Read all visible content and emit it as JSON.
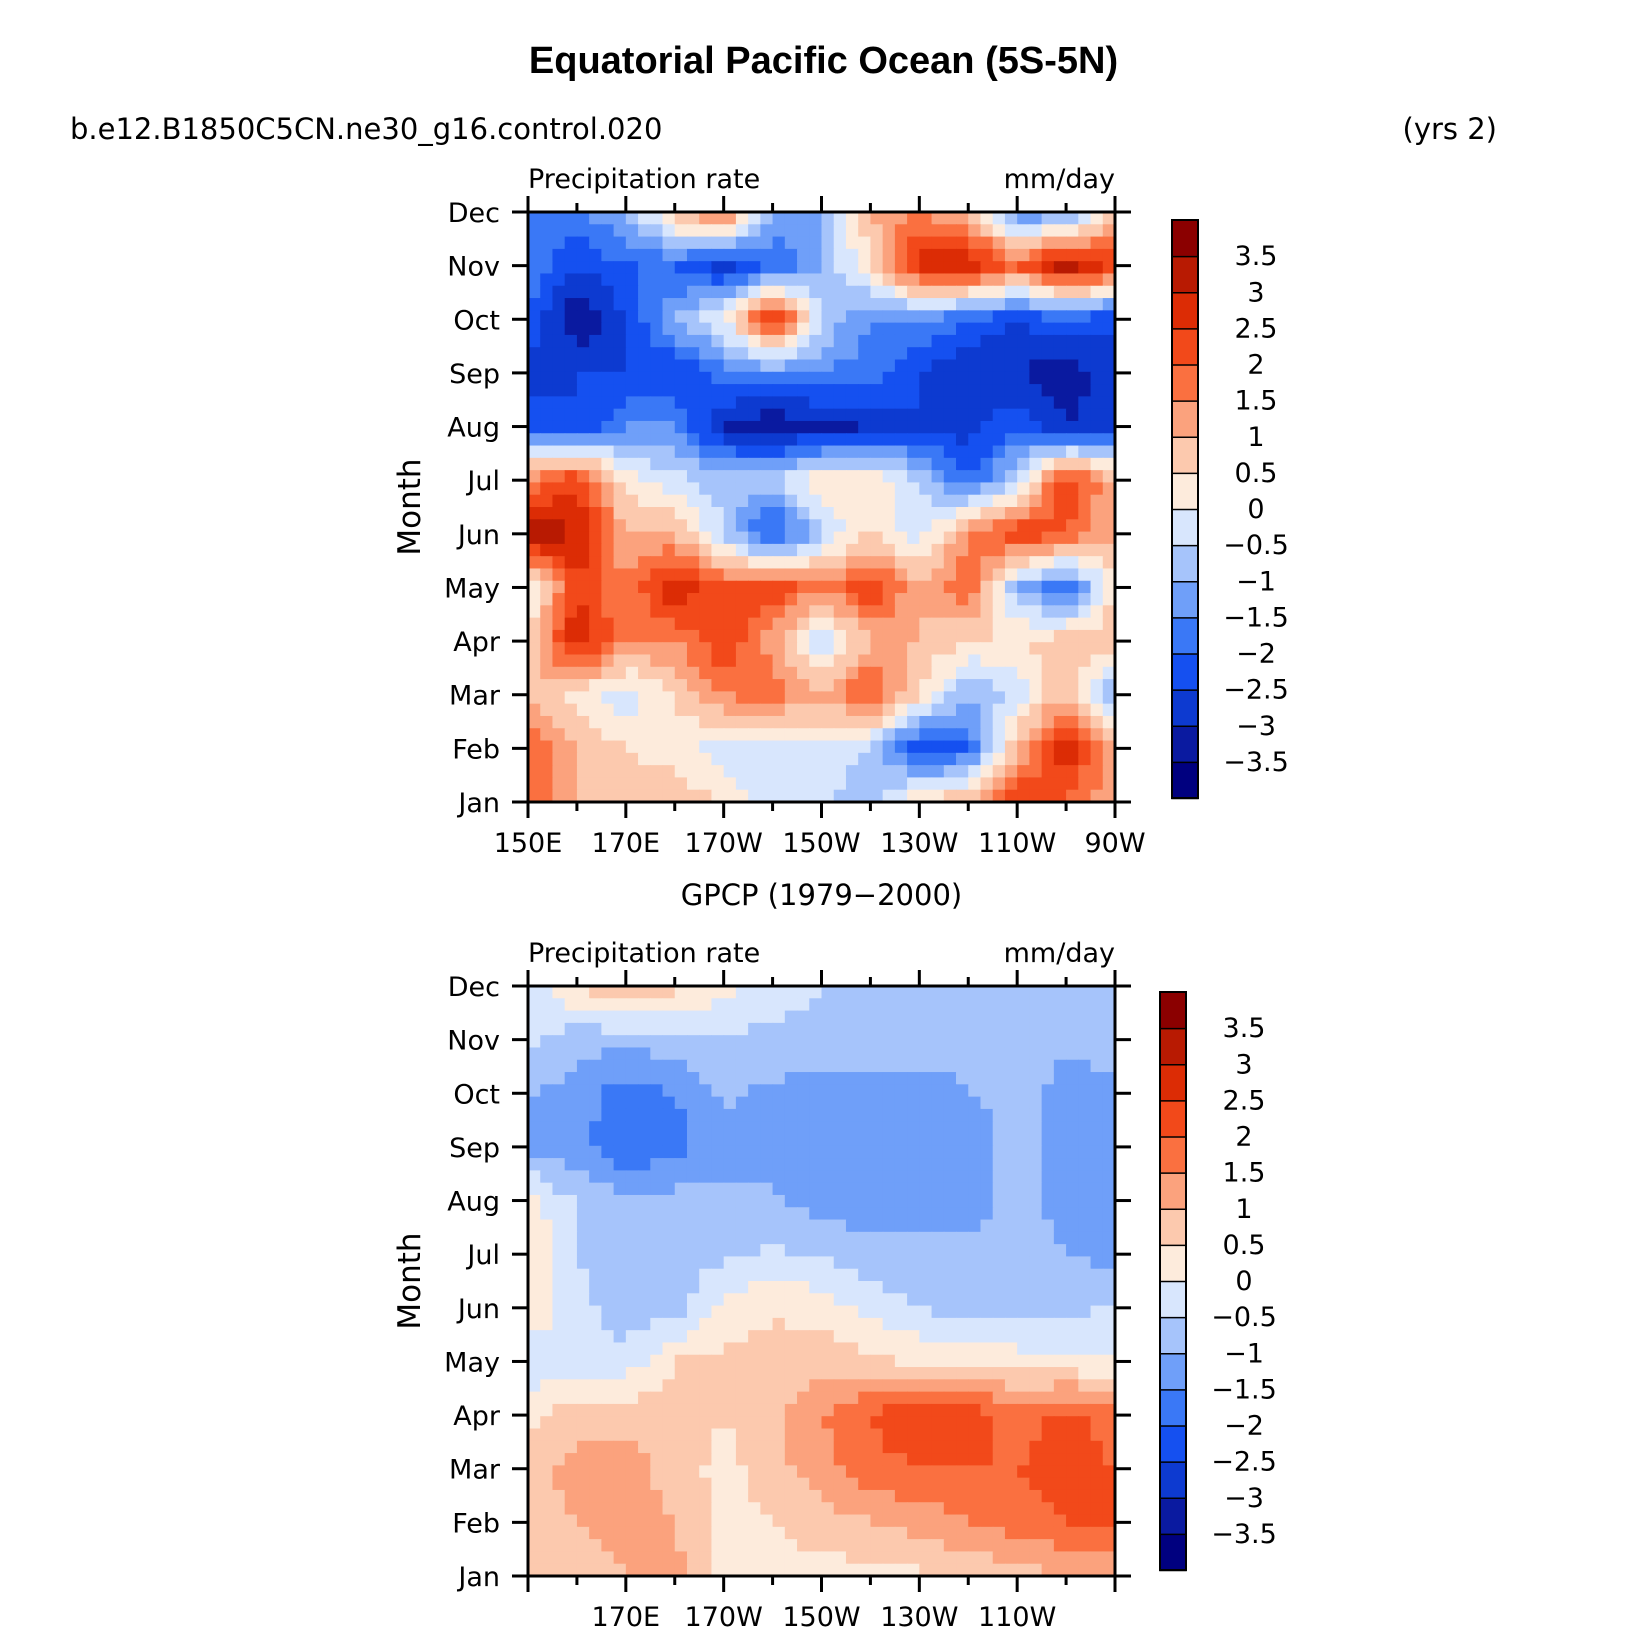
{
  "title": "Equatorial Pacific Ocean (5S-5N)",
  "case_name": "b.e12.B1850C5CN.ne30_g16.control.020",
  "years": "(yrs 2)",
  "colors": {
    "levels": [
      "#00007f",
      "#0a1aa0",
      "#0d3ad0",
      "#1550f0",
      "#3a78f6",
      "#6f9ff9",
      "#a6c4fb",
      "#d8e6fd",
      "#fdebdc",
      "#fcc9ae",
      "#fba27d",
      "#fa7040",
      "#f2491a",
      "#dc2c05",
      "#b81a02",
      "#8b0000"
    ]
  },
  "chart_data": [
    {
      "type": "heatmap",
      "title": "",
      "left_label": "Precipitation rate",
      "right_label": "mm/day",
      "xlabel": "",
      "ylabel": "Month",
      "xlim": [
        150,
        270
      ],
      "x_ticks": [
        150,
        170,
        190,
        210,
        230,
        250,
        270
      ],
      "x_tick_labels": [
        "150E",
        "170E",
        "170W",
        "150W",
        "130W",
        "110W",
        "90W"
      ],
      "y_tick_labels": [
        "Jan",
        "Feb",
        "Mar",
        "Apr",
        "May",
        "Jun",
        "Jul",
        "Aug",
        "Sep",
        "Oct",
        "Nov",
        "Dec"
      ],
      "colorbar_labels": [
        "3.5",
        "3",
        "2.5",
        "2",
        "1.5",
        "1",
        "0.5",
        "0",
        "−0.5",
        "−1",
        "−1.5",
        "−2",
        "−2.5",
        "−3",
        "−3.5"
      ],
      "x": [
        150,
        160,
        170,
        180,
        190,
        200,
        210,
        220,
        230,
        240,
        250,
        260,
        270
      ],
      "values": [
        [
          1.8,
          1.0,
          0.6,
          0.8,
          0.5,
          -0.3,
          -0.5,
          -0.8,
          0.6,
          1.0,
          2.5,
          2.0,
          1.0
        ],
        [
          2.0,
          1.0,
          0.5,
          0.3,
          -0.3,
          -0.6,
          0.0,
          -0.6,
          -2.5,
          -2.0,
          1.0,
          3.0,
          1.0
        ],
        [
          1.0,
          0.3,
          -0.3,
          0.5,
          1.5,
          1.8,
          1.0,
          2.2,
          0.5,
          -1.0,
          -0.3,
          1.0,
          -1.2
        ],
        [
          0.5,
          3.0,
          1.5,
          1.5,
          2.5,
          1.2,
          -0.5,
          1.0,
          1.0,
          0.5,
          0.5,
          0.8,
          1.0
        ],
        [
          -0.3,
          2.5,
          1.5,
          3.0,
          2.0,
          2.5,
          1.5,
          2.5,
          1.0,
          2.0,
          -1.0,
          -2.0,
          0.5
        ],
        [
          3.5,
          3.0,
          1.0,
          1.0,
          -0.5,
          -2.5,
          -0.5,
          0.5,
          -0.3,
          1.5,
          2.5,
          2.0,
          1.0
        ],
        [
          1.5,
          2.5,
          0.3,
          -0.3,
          -0.8,
          -0.5,
          0.5,
          0.5,
          -0.5,
          -2.0,
          -0.5,
          2.5,
          1.0
        ],
        [
          -2.0,
          -2.5,
          -1.5,
          -1.5,
          -3.0,
          -3.5,
          -3.2,
          -3.0,
          -2.5,
          -2.8,
          -2.0,
          -3.0,
          -2.5
        ],
        [
          -2.8,
          -2.5,
          -2.5,
          -2.5,
          -1.8,
          -1.5,
          -1.5,
          -1.8,
          -2.5,
          -3.0,
          -3.0,
          -3.5,
          -2.5
        ],
        [
          -2.0,
          -3.5,
          -2.5,
          -1.0,
          0.0,
          3.0,
          -0.5,
          -1.5,
          -1.5,
          -2.0,
          -2.5,
          -2.0,
          -2.5
        ],
        [
          -1.5,
          -2.5,
          -2.0,
          -2.0,
          -2.8,
          -2.0,
          -1.0,
          0.5,
          2.8,
          3.0,
          2.0,
          3.5,
          2.5
        ],
        [
          -1.5,
          -1.5,
          -1.0,
          1.0,
          2.0,
          -1.0,
          -1.0,
          1.0,
          1.5,
          1.0,
          -1.5,
          -1.5,
          0.5
        ]
      ]
    },
    {
      "type": "heatmap",
      "title": "GPCP (1979−2000)",
      "left_label": "Precipitation rate",
      "right_label": "mm/day",
      "xlabel": "",
      "ylabel": "Month",
      "xlim": [
        150,
        270
      ],
      "x_ticks": [
        170,
        190,
        210,
        230,
        250
      ],
      "x_tick_labels": [
        "170E",
        "170W",
        "150W",
        "130W",
        "110W"
      ],
      "y_tick_labels": [
        "Jan",
        "Feb",
        "Mar",
        "Apr",
        "May",
        "Jun",
        "Jul",
        "Aug",
        "Sep",
        "Oct",
        "Nov",
        "Dec"
      ],
      "colorbar_labels": [
        "3.5",
        "3",
        "2.5",
        "2",
        "1.5",
        "1",
        "0.5",
        "0",
        "−0.5",
        "−1",
        "−1.5",
        "−2",
        "−2.5",
        "−3",
        "−3.5"
      ],
      "x": [
        150,
        160,
        170,
        180,
        190,
        200,
        210,
        220,
        230,
        240,
        250,
        260,
        270
      ],
      "values": [
        [
          0.8,
          0.8,
          1.0,
          1.2,
          0.3,
          0.2,
          0.3,
          0.3,
          0.4,
          0.6,
          0.8,
          1.0,
          1.2
        ],
        [
          0.8,
          1.0,
          1.2,
          1.0,
          0.3,
          0.5,
          0.8,
          1.0,
          1.2,
          1.5,
          1.8,
          2.0,
          2.0
        ],
        [
          0.8,
          1.2,
          1.2,
          0.8,
          0.3,
          0.8,
          1.3,
          1.8,
          2.0,
          2.0,
          2.0,
          2.2,
          2.0
        ],
        [
          0.3,
          0.8,
          0.8,
          0.8,
          0.5,
          0.8,
          1.5,
          2.0,
          2.5,
          2.3,
          1.8,
          2.2,
          1.8
        ],
        [
          -0.4,
          -0.3,
          -0.3,
          0.5,
          0.6,
          0.8,
          0.8,
          0.6,
          0.4,
          0.3,
          0.2,
          0.1,
          0.0
        ],
        [
          0.5,
          -0.3,
          -0.8,
          -0.7,
          0.2,
          0.4,
          0.3,
          -0.2,
          -0.5,
          -0.7,
          -0.6,
          -0.6,
          -0.5
        ],
        [
          0.5,
          -0.5,
          -0.8,
          -0.8,
          -0.6,
          -0.4,
          -0.6,
          -0.8,
          -0.8,
          -0.8,
          -0.8,
          -1.0,
          -1.2
        ],
        [
          0.2,
          -0.6,
          -0.8,
          -0.8,
          -0.9,
          -0.9,
          -1.2,
          -1.3,
          -1.3,
          -1.3,
          -0.8,
          -1.2,
          -1.2
        ],
        [
          -1.2,
          -1.3,
          -2.0,
          -1.7,
          -1.2,
          -1.2,
          -1.4,
          -1.4,
          -1.4,
          -1.3,
          -0.8,
          -1.3,
          -1.2
        ],
        [
          -1.0,
          -1.2,
          -1.8,
          -1.5,
          -0.9,
          -1.1,
          -1.3,
          -1.4,
          -1.3,
          -1.0,
          -0.8,
          -1.2,
          -1.1
        ],
        [
          -0.4,
          -0.8,
          -0.8,
          -0.7,
          -0.6,
          -0.6,
          -0.6,
          -0.6,
          -0.7,
          -0.8,
          -0.8,
          -0.9,
          -0.8
        ],
        [
          -0.3,
          0.5,
          1.0,
          0.7,
          0.2,
          -0.3,
          -0.5,
          -0.6,
          -0.7,
          -0.8,
          -0.8,
          -0.8,
          -0.8
        ]
      ]
    }
  ]
}
